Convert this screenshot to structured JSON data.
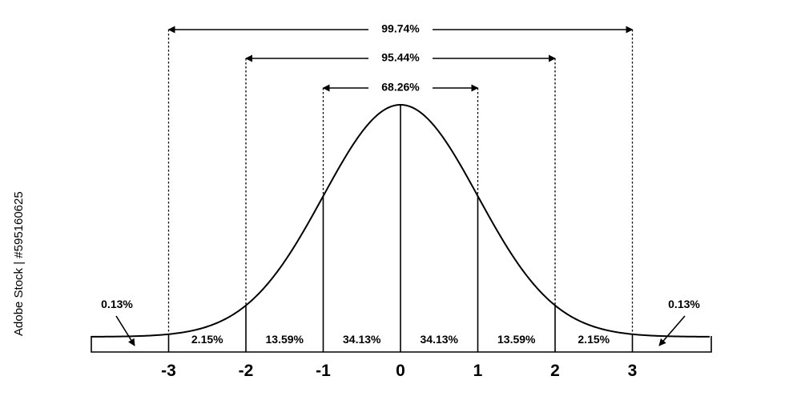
{
  "diagram": {
    "colors": {
      "stroke": "#000000",
      "background": "#ffffff"
    },
    "x_ticks": [
      "-3",
      "-2",
      "-1",
      "0",
      "1",
      "2",
      "3"
    ],
    "ranges": [
      {
        "label": "68.26%",
        "from": -1,
        "to": 1
      },
      {
        "label": "95.44%",
        "from": -2,
        "to": 2
      },
      {
        "label": "99.74%",
        "from": -3,
        "to": 3
      }
    ],
    "segments": [
      {
        "label": "2.15%",
        "from": -3,
        "to": -2
      },
      {
        "label": "13.59%",
        "from": -2,
        "to": -1
      },
      {
        "label": "34.13%",
        "from": -1,
        "to": 0
      },
      {
        "label": "34.13%",
        "from": 0,
        "to": 1
      },
      {
        "label": "13.59%",
        "from": 1,
        "to": 2
      },
      {
        "label": "2.15%",
        "from": 2,
        "to": 3
      }
    ],
    "tails": [
      {
        "label": "0.13%",
        "side": "left"
      },
      {
        "label": "0.13%",
        "side": "right"
      }
    ]
  },
  "watermark": {
    "text": "Adobe Stock | #595160625"
  }
}
